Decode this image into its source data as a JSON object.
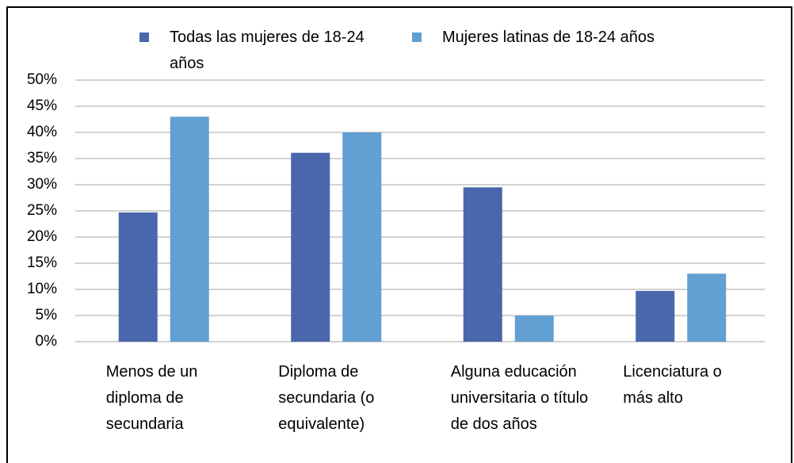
{
  "chart_data": {
    "type": "bar",
    "categories": [
      "Menos de un diploma de secundaria",
      "Diploma de secundaria (o equivalente)",
      "Alguna educación universitaria o título de dos años",
      "Licenciatura o más alto"
    ],
    "series": [
      {
        "name": "Todas las mujeres de 18-24 años",
        "color": "#4a66ac",
        "values": [
          24.7,
          36.1,
          29.5,
          9.7
        ]
      },
      {
        "name": "Mujeres latinas de 18-24 años",
        "color": "#629fd2",
        "values": [
          43,
          40,
          5,
          13
        ]
      }
    ],
    "ylim": [
      0,
      50
    ],
    "yticks": [
      {
        "value": 0,
        "label": "0%"
      },
      {
        "value": 5,
        "label": "5%"
      },
      {
        "value": 10,
        "label": "10%"
      },
      {
        "value": 15,
        "label": "15%"
      },
      {
        "value": 20,
        "label": "20%"
      },
      {
        "value": 25,
        "label": "25%"
      },
      {
        "value": 30,
        "label": "30%"
      },
      {
        "value": 35,
        "label": "35%"
      },
      {
        "value": 40,
        "label": "40%"
      },
      {
        "value": 45,
        "label": "45%"
      },
      {
        "value": 50,
        "label": "50%"
      }
    ],
    "grid": true,
    "legend": "top"
  }
}
